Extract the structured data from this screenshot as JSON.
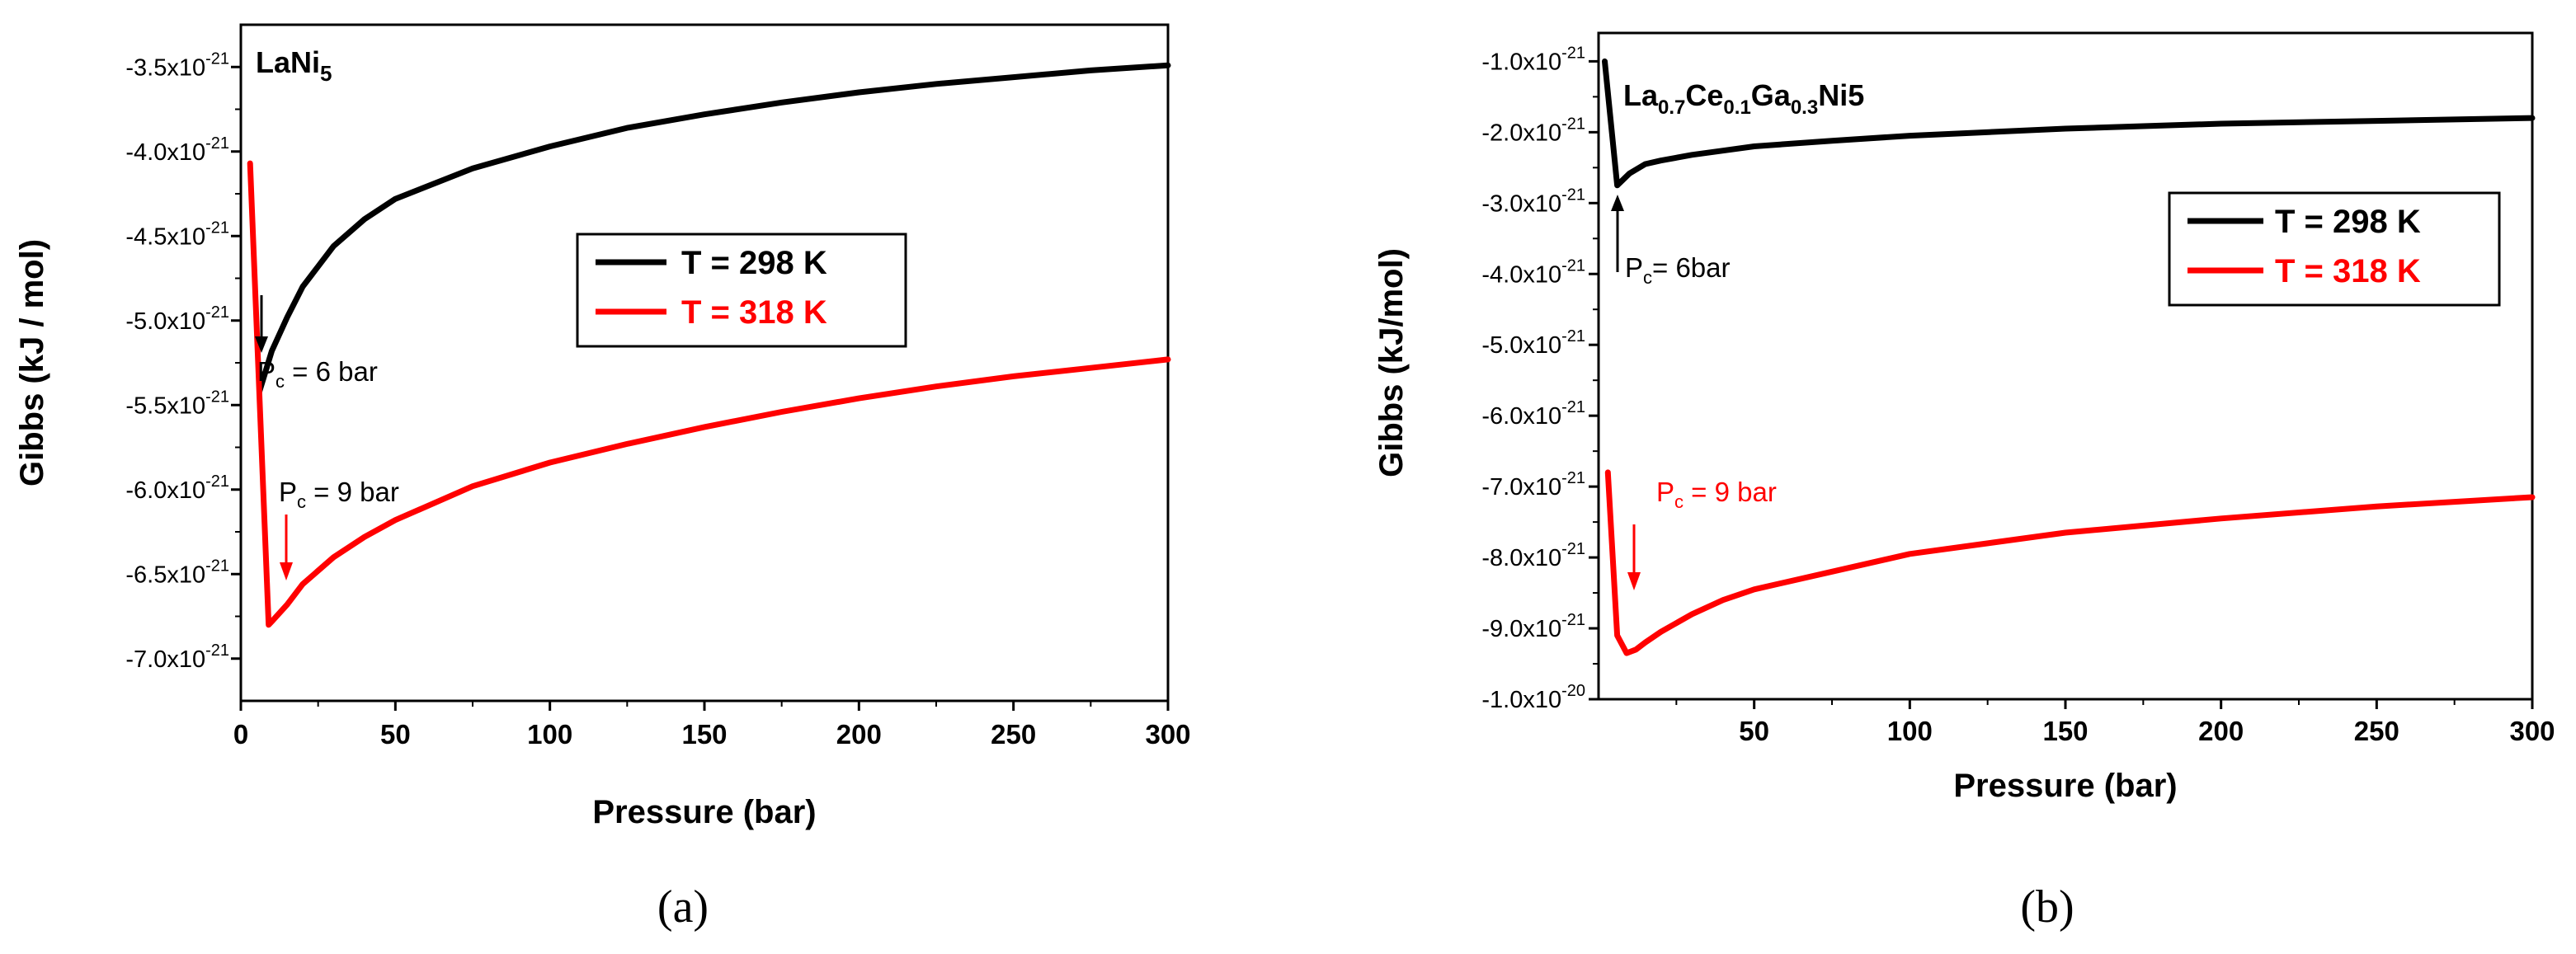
{
  "chart_data": [
    {
      "type": "line",
      "id": "a",
      "title": "LaNi",
      "title_sub": "5",
      "caption": "(a)",
      "xlabel": "Pressure (bar)",
      "ylabel": "Gibbs (kJ / mol)",
      "xlim": [
        0,
        300
      ],
      "ylim": [
        -7.25e-21,
        -3.25e-21
      ],
      "xticks": [
        0,
        50,
        100,
        150,
        200,
        250,
        300
      ],
      "xtick_labels": [
        "0",
        "50",
        "100",
        "150",
        "200",
        "250",
        "300"
      ],
      "yticks": [
        -3.5e-21,
        -4e-21,
        -4.5e-21,
        -5e-21,
        -5.5e-21,
        -6e-21,
        -6.5e-21,
        -7e-21
      ],
      "ytick_labels": [
        {
          "mant": "-3.5x10",
          "exp": "-21"
        },
        {
          "mant": "-4.0x10",
          "exp": "-21"
        },
        {
          "mant": "-4.5x10",
          "exp": "-21"
        },
        {
          "mant": "-5.0x10",
          "exp": "-21"
        },
        {
          "mant": "-5.5x10",
          "exp": "-21"
        },
        {
          "mant": "-6.0x10",
          "exp": "-21"
        },
        {
          "mant": "-6.5x10",
          "exp": "-21"
        },
        {
          "mant": "-7.0x10",
          "exp": "-21"
        }
      ],
      "legend": {
        "position": "center-right"
      },
      "series": [
        {
          "name": "T = 298 K",
          "color": "#000000",
          "x": [
            6,
            8,
            10,
            15,
            20,
            30,
            40,
            50,
            75,
            100,
            125,
            150,
            175,
            200,
            225,
            250,
            275,
            300
          ],
          "y": [
            -5.42e-21,
            -5.3e-21,
            -5.18e-21,
            -4.98e-21,
            -4.8e-21,
            -4.56e-21,
            -4.4e-21,
            -4.28e-21,
            -4.1e-21,
            -3.97e-21,
            -3.86e-21,
            -3.78e-21,
            -3.71e-21,
            -3.65e-21,
            -3.6e-21,
            -3.56e-21,
            -3.52e-21,
            -3.49e-21
          ]
        },
        {
          "name": "T = 318 K",
          "color": "#ff0000",
          "x": [
            3,
            9,
            10,
            15,
            20,
            30,
            40,
            50,
            75,
            100,
            125,
            150,
            175,
            200,
            225,
            250,
            275,
            300
          ],
          "y": [
            -4.07e-21,
            -6.8e-21,
            -6.78e-21,
            -6.68e-21,
            -6.56e-21,
            -6.4e-21,
            -6.28e-21,
            -6.18e-21,
            -5.98e-21,
            -5.84e-21,
            -5.73e-21,
            -5.63e-21,
            -5.54e-21,
            -5.46e-21,
            -5.39e-21,
            -5.33e-21,
            -5.28e-21,
            -5.23e-21
          ]
        }
      ],
      "annotations": [
        {
          "label": "P",
          "sub": "c",
          "rest": " = 6 bar",
          "color": "#000000",
          "at_x": 6,
          "at_y": -5.42e-21,
          "arrow_dir": "down"
        },
        {
          "label": "P",
          "sub": "c",
          "rest": " = 9 bar",
          "color": "#000000",
          "at_x": 14,
          "at_y": -6.5e-21,
          "arrow_dir": "down",
          "arrow_color": "#ff0000"
        }
      ]
    },
    {
      "type": "line",
      "id": "b",
      "title_parts": [
        {
          "t": "La",
          "sub": "0.7"
        },
        {
          "t": "Ce",
          "sub": "0.1"
        },
        {
          "t": "Ga",
          "sub": "0.3"
        },
        {
          "t": "Ni",
          "sub": "5"
        }
      ],
      "caption": "(b)",
      "xlabel": "Pressure (bar)",
      "ylabel": "Gibbs (kJ/mol)",
      "xlim": [
        0,
        300
      ],
      "ylim": [
        -1e-20,
        -6e-22
      ],
      "xticks": [
        50,
        100,
        150,
        200,
        250,
        300
      ],
      "xtick_labels": [
        "50",
        "100",
        "150",
        "200",
        "250",
        "300"
      ],
      "yticks": [
        -1e-21,
        -2e-21,
        -3e-21,
        -4e-21,
        -5e-21,
        -6e-21,
        -7e-21,
        -8e-21,
        -9e-21,
        -1e-20
      ],
      "ytick_labels": [
        {
          "mant": "-1.0x10",
          "exp": "-21"
        },
        {
          "mant": "-2.0x10",
          "exp": "-21"
        },
        {
          "mant": "-3.0x10",
          "exp": "-21"
        },
        {
          "mant": "-4.0x10",
          "exp": "-21"
        },
        {
          "mant": "-5.0x10",
          "exp": "-21"
        },
        {
          "mant": "-6.0x10",
          "exp": "-21"
        },
        {
          "mant": "-7.0x10",
          "exp": "-21"
        },
        {
          "mant": "-8.0x10",
          "exp": "-21"
        },
        {
          "mant": "-9.0x10",
          "exp": "-21"
        },
        {
          "mant": "-1.0x10",
          "exp": "-20"
        }
      ],
      "legend": {
        "position": "top-right"
      },
      "series": [
        {
          "name": "T = 298 K",
          "color": "#000000",
          "x": [
            2,
            6,
            10,
            15,
            20,
            30,
            40,
            50,
            75,
            100,
            150,
            200,
            250,
            300
          ],
          "y": [
            -1e-21,
            -2.75e-21,
            -2.58e-21,
            -2.45e-21,
            -2.4e-21,
            -2.32e-21,
            -2.26e-21,
            -2.2e-21,
            -2.12e-21,
            -2.05e-21,
            -1.95e-21,
            -1.88e-21,
            -1.84e-21,
            -1.8e-21
          ]
        },
        {
          "name": "T = 318 K",
          "color": "#ff0000",
          "x": [
            3,
            6,
            9,
            12,
            15,
            20,
            30,
            40,
            50,
            75,
            100,
            150,
            200,
            250,
            300
          ],
          "y": [
            -6.8e-21,
            -9.1e-21,
            -9.35e-21,
            -9.3e-21,
            -9.2e-21,
            -9.05e-21,
            -8.8e-21,
            -8.6e-21,
            -8.45e-21,
            -8.2e-21,
            -7.95e-21,
            -7.65e-21,
            -7.45e-21,
            -7.28e-21,
            -7.15e-21
          ]
        }
      ],
      "annotations": [
        {
          "label": "P",
          "sub": "c",
          "rest": "= 6bar",
          "color": "#000000",
          "at_x": 6,
          "at_y": -2.75e-21,
          "arrow_dir": "up"
        },
        {
          "label": "P",
          "sub": "c",
          "rest": " = 9 bar",
          "color": "#ff0000",
          "at_x": 9,
          "at_y": -9e-21,
          "arrow_dir": "down"
        }
      ]
    }
  ]
}
